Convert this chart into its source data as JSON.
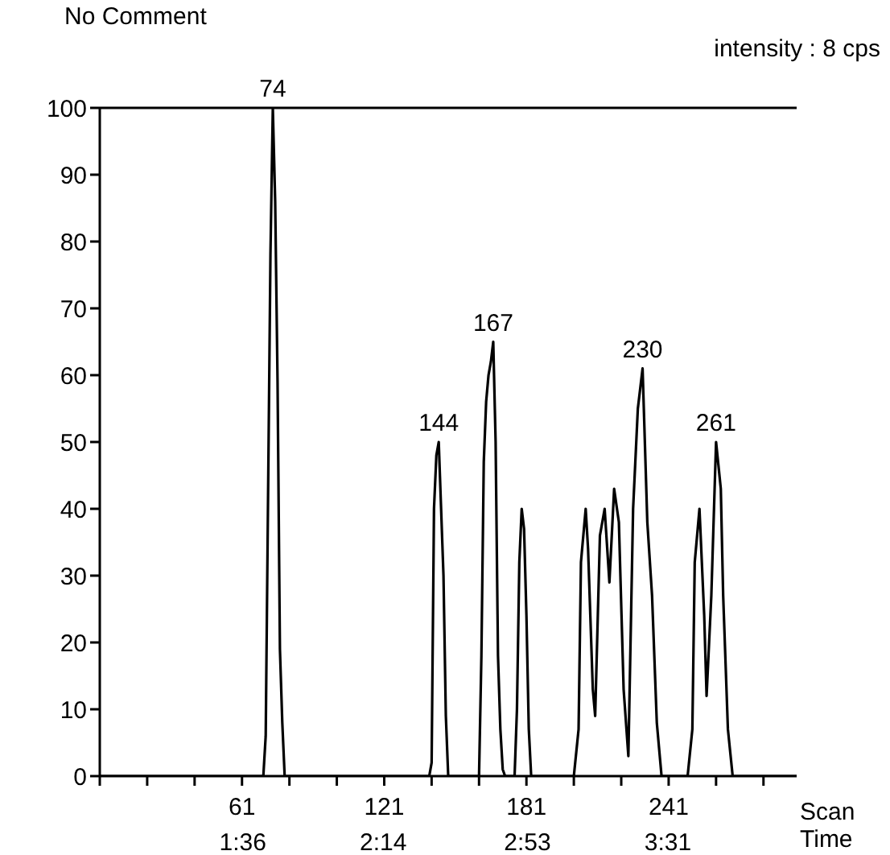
{
  "chart_data": {
    "type": "line",
    "annotations": [
      "No Comment",
      "intensity : 8 cps",
      {
        "text": "74",
        "x": 74,
        "y": 100
      },
      {
        "text": "144",
        "x": 144,
        "y": 50
      },
      {
        "text": "167",
        "x": 167,
        "y": 65
      },
      {
        "text": "230",
        "x": 230,
        "y": 61
      },
      {
        "text": "261",
        "x": 261,
        "y": 50
      }
    ],
    "xlabel": "Scan\nTime",
    "series": [
      {
        "color": "#000000",
        "x": [
          1,
          69,
          70,
          71,
          72,
          73,
          74,
          75,
          76,
          77,
          78,
          79,
          139,
          140,
          141,
          142,
          143,
          144,
          145,
          146,
          147,
          148,
          160,
          161,
          162,
          163,
          164,
          165,
          166,
          167,
          168,
          169,
          170,
          171,
          172,
          175,
          176,
          177,
          178,
          179,
          180,
          181,
          182,
          183,
          200,
          201,
          203,
          204,
          206,
          207,
          209,
          210,
          212,
          214,
          216,
          218,
          220,
          222,
          224,
          226,
          228,
          230,
          232,
          234,
          236,
          238,
          249,
          251,
          252,
          254,
          256,
          257,
          259,
          261,
          263,
          264,
          266,
          268,
          295
        ],
        "values": [
          0,
          0,
          0,
          6,
          42,
          78,
          100,
          86,
          59,
          19,
          8,
          0,
          0,
          0,
          2,
          40,
          48,
          50,
          40,
          30,
          9,
          0,
          0,
          0,
          18,
          47,
          56,
          60,
          62,
          65,
          50,
          18,
          7,
          1,
          0,
          0,
          0,
          10,
          32,
          40,
          37,
          24,
          7,
          0,
          0,
          0,
          7,
          32,
          40,
          34,
          13,
          9,
          36,
          40,
          29,
          43,
          38,
          13,
          3,
          40,
          55,
          61,
          38,
          27,
          8,
          0,
          0,
          7,
          32,
          40,
          24,
          12,
          27,
          50,
          43,
          27,
          7,
          0,
          0
        ]
      }
    ],
    "xlim": [
      1,
      295
    ],
    "xticks": [
      {
        "value": 1,
        "label": null
      },
      {
        "value": 21,
        "label": null
      },
      {
        "value": 41,
        "label": null
      },
      61,
      {
        "value": 81,
        "label": null
      },
      {
        "value": 101,
        "label": null
      },
      121,
      {
        "value": 141,
        "label": null
      },
      {
        "value": 161,
        "label": null
      },
      181,
      {
        "value": 201,
        "label": null
      },
      {
        "value": 221,
        "label": null
      },
      241,
      {
        "value": 261,
        "label": null
      },
      {
        "value": 281,
        "label": null
      }
    ],
    "x2lim": [
      0.955,
      4.097
    ],
    "x2ticks": [
      {
        "value": 1.6,
        "label": "1:36"
      },
      {
        "value": 2.2333,
        "label": "2:14"
      },
      {
        "value": 2.8833,
        "label": "2:53"
      },
      {
        "value": 3.5167,
        "label": "3:31"
      }
    ],
    "ylim": [
      0,
      100
    ],
    "yticks": [
      0,
      10,
      20,
      30,
      40,
      50,
      60,
      70,
      80,
      90,
      100
    ],
    "ref_lines": [
      {
        "axis": "y",
        "value": 100,
        "label": null,
        "color": "#000000"
      }
    ],
    "grid": false,
    "legend": false,
    "marker": "none",
    "line_style": "solid"
  }
}
